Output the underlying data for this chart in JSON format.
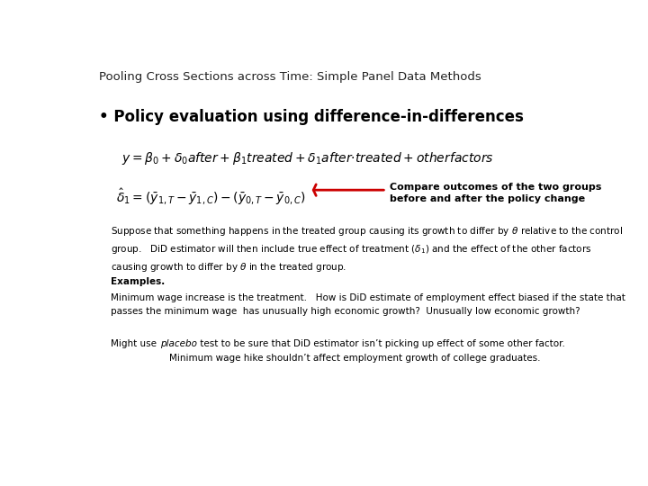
{
  "title": "Pooling Cross Sections across Time: Simple Panel Data Methods",
  "title_fontsize": 9.5,
  "background_color": "#ffffff",
  "bullet": "Policy evaluation using difference-in-differences",
  "bullet_fontsize": 12,
  "eq1_fontsize": 10,
  "eq2_fontsize": 10,
  "annotation_text": "Compare outcomes of the two groups\nbefore and after the policy change",
  "arrow_color": "#cc0000",
  "annotation_fontsize": 8.0,
  "body_fontsize": 7.5,
  "examples_fontsize": 7.5
}
